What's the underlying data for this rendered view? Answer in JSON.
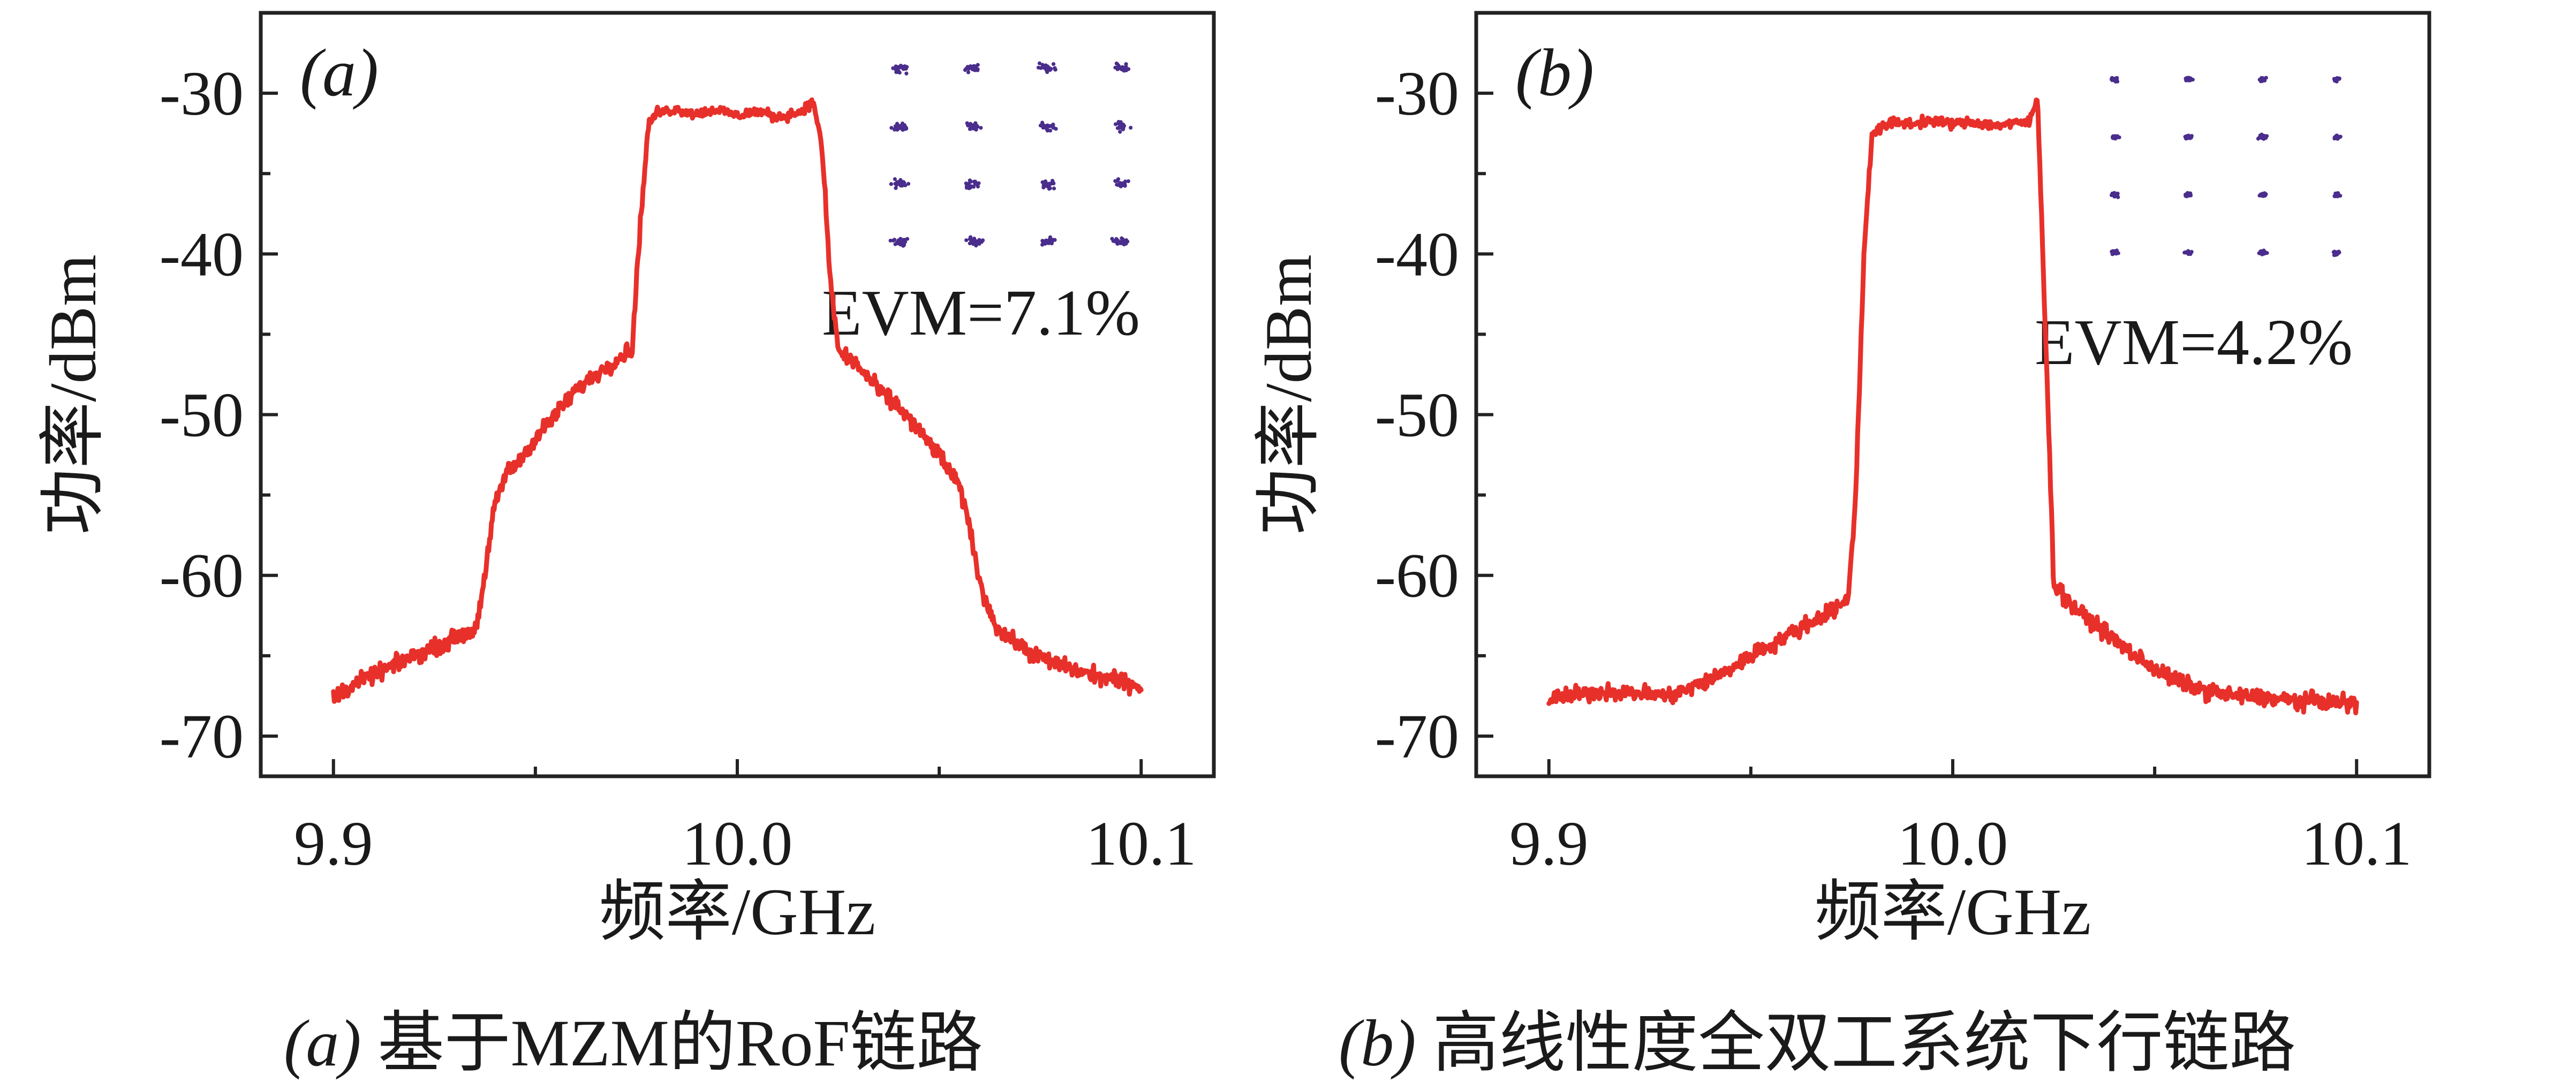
{
  "colors": {
    "spectrum": "#e8302a",
    "constellation": "#4a2d8c",
    "axes": "#222222"
  },
  "chart_data": [
    {
      "type": "line",
      "panel_tag": "(a)",
      "caption_prefix": "(a)",
      "caption_text": " 基于MZM的RoF链路",
      "xlabel": "频率/GHz",
      "ylabel": "功率/dBm",
      "xlim": [
        9.882,
        10.118
      ],
      "ylim": [
        -72.5,
        -25
      ],
      "xticks": [
        9.9,
        10.0,
        10.1
      ],
      "xtick_labels": [
        "9.9",
        "10.0",
        "10.1"
      ],
      "yticks": [
        -30,
        -40,
        -50,
        -60,
        -70
      ],
      "ytick_labels": [
        "-30",
        "-40",
        "-50",
        "-60",
        "-70"
      ],
      "annotation": "EVM=7.1%",
      "inset": "16QAM constellation",
      "series": [
        {
          "x": [
            9.9,
            9.905,
            9.91,
            9.915,
            9.92,
            9.925,
            9.93,
            9.935,
            9.937,
            9.94,
            9.943,
            9.945,
            9.95,
            9.955,
            9.96,
            9.965,
            9.97,
            9.974,
            9.976,
            9.978,
            9.98,
            9.985,
            9.99,
            9.995,
            10.0,
            10.005,
            10.01,
            10.015,
            10.019,
            10.021,
            10.023,
            10.025,
            10.03,
            10.035,
            10.04,
            10.045,
            10.05,
            10.055,
            10.058,
            10.06,
            10.063,
            10.065,
            10.07,
            10.075,
            10.08,
            10.085,
            10.09,
            10.095,
            10.1
          ],
          "y": [
            -67.6,
            -66.8,
            -66.2,
            -65.6,
            -65.0,
            -64.5,
            -63.9,
            -63.4,
            -61.0,
            -55.5,
            -53.5,
            -53.2,
            -51.5,
            -50.0,
            -48.5,
            -47.5,
            -46.6,
            -45.8,
            -38.0,
            -32.0,
            -31.2,
            -31.0,
            -31.3,
            -31.0,
            -31.4,
            -31.1,
            -31.5,
            -31.2,
            -30.6,
            -33.5,
            -41.5,
            -46.0,
            -47.0,
            -48.5,
            -49.5,
            -51.0,
            -52.5,
            -54.5,
            -57.5,
            -60.5,
            -62.5,
            -63.5,
            -64.4,
            -65.1,
            -65.6,
            -66.0,
            -66.3,
            -66.6,
            -66.9
          ]
        }
      ]
    },
    {
      "type": "line",
      "panel_tag": "(b)",
      "caption_prefix": "(b)",
      "caption_text": " 高线性度全双工系统下行链路",
      "xlabel": "频率/GHz",
      "ylabel": "功率/dBm",
      "xlim": [
        9.882,
        10.118
      ],
      "ylim": [
        -72.5,
        -25
      ],
      "xticks": [
        9.9,
        10.0,
        10.1
      ],
      "xtick_labels": [
        "9.9",
        "10.0",
        "10.1"
      ],
      "yticks": [
        -30,
        -40,
        -50,
        -60,
        -70
      ],
      "ytick_labels": [
        "-30",
        "-40",
        "-50",
        "-60",
        "-70"
      ],
      "annotation": "EVM=4.2%",
      "inset": "16QAM constellation",
      "series": [
        {
          "x": [
            9.9,
            9.905,
            9.91,
            9.915,
            9.92,
            9.925,
            9.93,
            9.935,
            9.94,
            9.945,
            9.95,
            9.955,
            9.96,
            9.965,
            9.97,
            9.974,
            9.976,
            9.978,
            9.98,
            9.985,
            9.99,
            9.995,
            10.0,
            10.005,
            10.01,
            10.015,
            10.019,
            10.021,
            10.023,
            10.025,
            10.028,
            10.03,
            10.035,
            10.04,
            10.045,
            10.05,
            10.055,
            10.06,
            10.065,
            10.07,
            10.075,
            10.08,
            10.085,
            10.09,
            10.095,
            10.1
          ],
          "y": [
            -67.7,
            -67.5,
            -67.3,
            -67.2,
            -67.3,
            -67.4,
            -67.5,
            -67.0,
            -66.5,
            -65.8,
            -65.0,
            -64.3,
            -63.6,
            -62.9,
            -62.2,
            -61.6,
            -55.0,
            -40.0,
            -32.5,
            -31.8,
            -31.9,
            -31.7,
            -31.9,
            -31.8,
            -32.0,
            -31.9,
            -31.8,
            -30.3,
            -45.0,
            -60.5,
            -61.4,
            -62.0,
            -63.0,
            -64.0,
            -65.0,
            -65.8,
            -66.5,
            -67.0,
            -67.3,
            -67.5,
            -67.6,
            -67.7,
            -67.8,
            -67.8,
            -67.9,
            -68.0
          ]
        }
      ]
    }
  ]
}
